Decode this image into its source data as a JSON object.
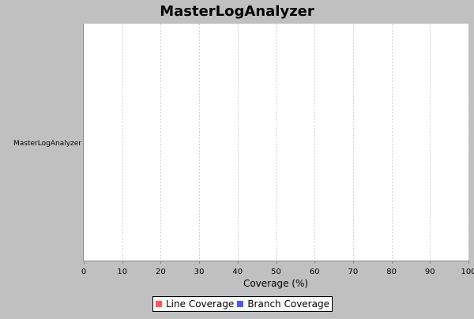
{
  "chart_data": {
    "type": "bar",
    "orientation": "horizontal",
    "title": "MasterLogAnalyzer",
    "categories": [
      "MasterLogAnalyzer"
    ],
    "series": [
      {
        "name": "Line Coverage",
        "color": "#ff5555",
        "values": [
          0
        ]
      },
      {
        "name": "Branch Coverage",
        "color": "#5555ff",
        "values": [
          0
        ]
      }
    ],
    "xlabel": "Coverage (%)",
    "ylabel": "",
    "xlim": [
      0,
      100
    ],
    "x_ticks": [
      0,
      10,
      20,
      30,
      40,
      50,
      60,
      70,
      80,
      90,
      100
    ],
    "grid": true,
    "legend_position": "bottom"
  },
  "colors": {
    "background": "#c0c0c0",
    "plot_background": "#ffffff",
    "gridline": "#d0d0d0"
  }
}
